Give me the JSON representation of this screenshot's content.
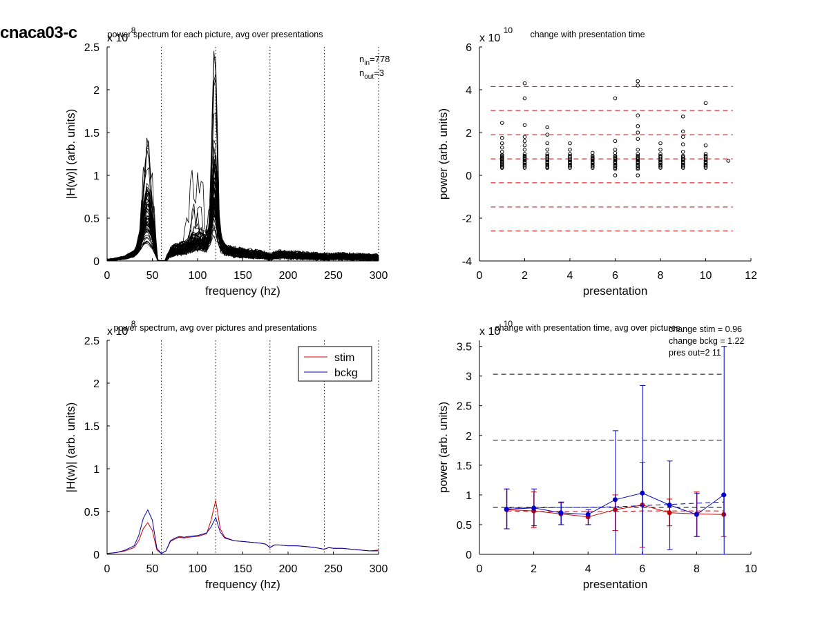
{
  "figure": {
    "title": "cnaca03-c"
  },
  "chart_data": [
    {
      "id": "tl",
      "type": "line",
      "title": "power spectrum for each picture, avg over presentations",
      "xlabel": "frequency (hz)",
      "ylabel": "|H(w)| (arb. units)",
      "exponent_base": "x 10",
      "exponent_power": "8",
      "xlim": [
        0,
        300
      ],
      "ylim": [
        0,
        2.5
      ],
      "xticks": [
        0,
        50,
        100,
        150,
        200,
        250,
        300
      ],
      "yticks": [
        0,
        0.5,
        1,
        1.5,
        2,
        2.5
      ],
      "vlines": [
        60,
        120,
        180,
        240,
        300
      ],
      "annotation_lines": [
        {
          "base": "n",
          "sub": "in",
          "value": "=778"
        },
        {
          "base": "n",
          "sub": "out",
          "value": "=3"
        }
      ],
      "series_count": 60,
      "mean_spectrum": {
        "x": [
          0,
          10,
          20,
          30,
          35,
          40,
          45,
          50,
          55,
          60,
          65,
          70,
          75,
          80,
          90,
          100,
          110,
          115,
          118,
          120,
          125,
          130,
          140,
          150,
          160,
          170,
          180,
          190,
          200,
          220,
          240,
          260,
          280,
          300
        ],
        "y": [
          0.02,
          0.03,
          0.06,
          0.12,
          0.22,
          0.38,
          0.42,
          0.3,
          0.06,
          0.0,
          0.03,
          0.15,
          0.19,
          0.21,
          0.22,
          0.24,
          0.27,
          0.5,
          0.65,
          0.55,
          0.3,
          0.2,
          0.15,
          0.14,
          0.12,
          0.11,
          0.07,
          0.11,
          0.1,
          0.09,
          0.07,
          0.08,
          0.07,
          0.06
        ]
      },
      "peak_max": {
        "x": [
          45,
          120
        ],
        "y": [
          1.33,
          2.18
        ]
      },
      "color": "#000000"
    },
    {
      "id": "tr",
      "type": "scatter",
      "title": "change with presentation time",
      "xlabel": "presentation",
      "ylabel": "power (arb. units)",
      "exponent_base": "x 10",
      "exponent_power": "10",
      "xlim": [
        0,
        12
      ],
      "ylim": [
        -4,
        6
      ],
      "xticks": [
        0,
        2,
        4,
        6,
        8,
        10,
        12
      ],
      "yticks": [
        -4,
        -2,
        0,
        2,
        4,
        6
      ],
      "hlines": [
        4.15,
        3.03,
        1.9,
        0.77,
        -0.35,
        -1.48,
        -2.6
      ],
      "hline_color": "#cc0000",
      "points": [
        {
          "x": 1,
          "y": [
            2.45,
            1.75,
            1.5,
            1.3,
            1.1,
            0.95,
            0.85,
            0.75,
            0.65,
            0.55,
            0.48,
            0.4
          ]
        },
        {
          "x": 2,
          "y": [
            4.3,
            3.6,
            2.35,
            1.8,
            1.6,
            1.4,
            1.2,
            1.0,
            0.9,
            0.8,
            0.7,
            0.6,
            0.5
          ]
        },
        {
          "x": 3,
          "y": [
            2.25,
            1.9,
            1.5,
            1.2,
            1.0,
            0.85,
            0.7,
            0.6,
            0.5,
            0.4,
            0.35
          ]
        },
        {
          "x": 4,
          "y": [
            1.5,
            1.2,
            1.0,
            0.85,
            0.7,
            0.6,
            0.5,
            0.42
          ]
        },
        {
          "x": 5,
          "y": [
            1.05,
            0.9,
            0.8,
            0.7,
            0.6,
            0.5,
            0.42
          ]
        },
        {
          "x": 6,
          "y": [
            3.6,
            1.6,
            1.2,
            1.05,
            0.9,
            0.8,
            0.7,
            0.6,
            0.5,
            0.42,
            0.3,
            0.0
          ]
        },
        {
          "x": 7,
          "y": [
            4.4,
            4.2,
            2.8,
            2.3,
            2.0,
            1.7,
            1.2,
            1.0,
            0.8,
            0.7,
            0.6,
            0.5,
            0.3,
            0.0
          ]
        },
        {
          "x": 8,
          "y": [
            1.5,
            1.2,
            1.0,
            0.85,
            0.7,
            0.6,
            0.5,
            0.42
          ]
        },
        {
          "x": 9,
          "y": [
            2.75,
            2.05,
            1.8,
            1.45,
            1.1,
            0.9,
            0.75,
            0.6,
            0.5,
            0.42
          ]
        },
        {
          "x": 10,
          "y": [
            3.38,
            1.4,
            1.0,
            0.85,
            0.7,
            0.6,
            0.5,
            0.42
          ]
        },
        {
          "x": 11,
          "y": [
            0.68
          ]
        }
      ]
    },
    {
      "id": "bl",
      "type": "line",
      "title": "power spectrum, avg over pictures and presentations",
      "xlabel": "frequency (hz)",
      "ylabel": "|H(w)| (arb. units)",
      "exponent_base": "x 10",
      "exponent_power": "8",
      "xlim": [
        0,
        300
      ],
      "ylim": [
        0,
        2.5
      ],
      "xticks": [
        0,
        50,
        100,
        150,
        200,
        250,
        300
      ],
      "yticks": [
        0,
        0.5,
        1,
        1.5,
        2,
        2.5
      ],
      "vlines": [
        60,
        120,
        180,
        240,
        300
      ],
      "legend_position": "top-right",
      "x": [
        0,
        10,
        20,
        30,
        35,
        40,
        45,
        50,
        55,
        60,
        65,
        70,
        75,
        80,
        85,
        90,
        100,
        110,
        115,
        120,
        125,
        130,
        140,
        150,
        160,
        170,
        175,
        180,
        185,
        190,
        200,
        210,
        220,
        230,
        240,
        245,
        250,
        260,
        270,
        280,
        290,
        300
      ],
      "series": [
        {
          "name": "stim",
          "color": "#cc0000",
          "values": [
            0.01,
            0.02,
            0.04,
            0.08,
            0.16,
            0.3,
            0.37,
            0.28,
            0.05,
            0.01,
            0.04,
            0.15,
            0.18,
            0.2,
            0.19,
            0.2,
            0.21,
            0.24,
            0.4,
            0.63,
            0.3,
            0.2,
            0.16,
            0.15,
            0.14,
            0.13,
            0.12,
            0.08,
            0.11,
            0.11,
            0.1,
            0.1,
            0.09,
            0.08,
            0.06,
            0.08,
            0.07,
            0.07,
            0.06,
            0.05,
            0.04,
            0.05
          ]
        },
        {
          "name": "bckg",
          "color": "#0000aa",
          "values": [
            0.01,
            0.02,
            0.05,
            0.1,
            0.22,
            0.42,
            0.52,
            0.4,
            0.07,
            0.01,
            0.04,
            0.16,
            0.19,
            0.21,
            0.2,
            0.21,
            0.22,
            0.25,
            0.32,
            0.43,
            0.26,
            0.19,
            0.16,
            0.15,
            0.14,
            0.13,
            0.12,
            0.08,
            0.11,
            0.11,
            0.1,
            0.1,
            0.09,
            0.08,
            0.06,
            0.08,
            0.07,
            0.07,
            0.06,
            0.05,
            0.04,
            0.04
          ]
        }
      ]
    },
    {
      "id": "br",
      "type": "line",
      "title": "change with presentation time, avg over pictures",
      "xlabel": "presentation",
      "ylabel": "power (arb. units)",
      "exponent_base": "x 10",
      "exponent_power": "10",
      "xlim": [
        0,
        10
      ],
      "ylim": [
        0,
        3.6
      ],
      "xticks": [
        0,
        2,
        4,
        6,
        8,
        10
      ],
      "yticks": [
        0,
        0.5,
        1,
        1.5,
        2,
        2.5,
        3,
        3.5
      ],
      "annotation_lines": [
        "change stim = 0.96",
        "change bckg = 1.22",
        "pres out=2 11"
      ],
      "hlines_black": [
        3.03,
        1.92,
        0.79
      ],
      "x": [
        1,
        2,
        3,
        4,
        5,
        6,
        7,
        8,
        9
      ],
      "series": [
        {
          "name": "stim",
          "color": "#cc0000",
          "values": [
            0.75,
            0.73,
            0.68,
            0.63,
            0.75,
            0.83,
            0.7,
            0.68,
            0.67
          ],
          "err_low": [
            0.43,
            0.45,
            0.5,
            0.5,
            0.4,
            0.12,
            0.48,
            0.3,
            0.3
          ],
          "err_high": [
            1.1,
            1.05,
            0.87,
            0.72,
            1.0,
            1.55,
            0.93,
            1.05,
            1.0
          ],
          "ref_line": [
            0.73,
            0.72,
            0.72,
            0.72,
            0.72,
            0.73,
            0.73,
            0.73,
            0.73
          ]
        },
        {
          "name": "bckg",
          "color": "#0000cc",
          "values": [
            0.76,
            0.78,
            0.7,
            0.67,
            0.92,
            1.03,
            0.83,
            0.67,
            1.0
          ],
          "err_low": [
            0.43,
            0.48,
            0.5,
            0.5,
            0.0,
            0.0,
            0.08,
            0.3,
            0.0
          ],
          "err_high": [
            1.1,
            1.1,
            0.88,
            0.75,
            2.08,
            2.84,
            1.57,
            1.03,
            3.5
          ],
          "ref_line": [
            0.78,
            0.78,
            0.79,
            0.79,
            0.8,
            0.82,
            0.84,
            0.86,
            0.88
          ]
        }
      ]
    }
  ]
}
